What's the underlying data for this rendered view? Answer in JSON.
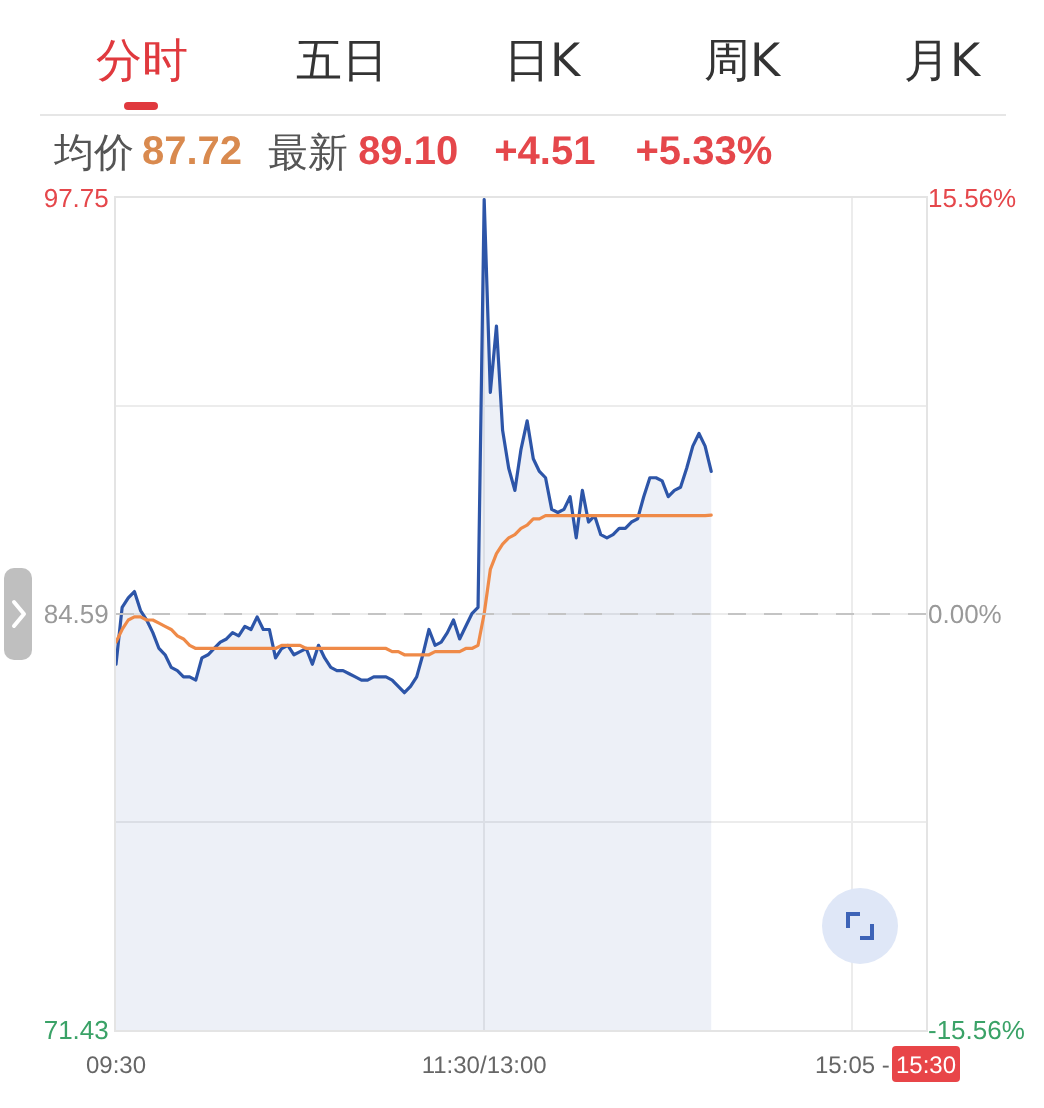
{
  "chart_data": {
    "type": "line",
    "annotations": [
      "分时",
      "五日",
      "日K",
      "周K",
      "月K",
      "均价",
      "87.72",
      "最新",
      "89.10",
      "+4.51",
      "+5.33%"
    ],
    "categories": [
      "09:30",
      null,
      null,
      null,
      null,
      null,
      null,
      null,
      null,
      null,
      null,
      null,
      null,
      null,
      null,
      null,
      null,
      null,
      null,
      null,
      null,
      null,
      null,
      null,
      null,
      null,
      null,
      null,
      null,
      null,
      null,
      null,
      null,
      null,
      null,
      null,
      null,
      null,
      null,
      null,
      null,
      null,
      null,
      null,
      null,
      null,
      null,
      null,
      null,
      null,
      null,
      null,
      null,
      null,
      null,
      null,
      null,
      null,
      null,
      null,
      "11:30/13:00",
      null,
      null,
      null,
      null,
      null,
      null,
      null,
      null,
      null,
      null,
      null,
      null,
      null,
      null,
      null,
      null,
      null,
      null,
      null,
      null,
      null,
      null,
      null,
      null,
      null,
      null,
      null,
      null,
      null,
      null,
      null,
      null,
      null,
      null,
      null,
      null,
      null,
      null,
      null,
      null,
      null,
      null,
      null,
      null,
      null,
      null,
      null,
      null,
      null,
      null,
      null,
      null,
      null,
      null,
      null,
      null,
      null,
      null,
      null,
      "15:05 -",
      null,
      null,
      null,
      null,
      null,
      null,
      null,
      null,
      null,
      null,
      null,
      "15:30"
    ],
    "series": [
      {
        "type": "area",
        "color": "#2d55a8",
        "values": [
          83.0,
          84.8,
          85.1,
          85.3,
          84.7,
          84.4,
          84.0,
          83.5,
          83.3,
          82.9,
          82.8,
          82.6,
          82.6,
          82.5,
          83.2,
          83.3,
          83.5,
          83.7,
          83.8,
          84.0,
          83.9,
          84.2,
          84.1,
          84.5,
          84.1,
          84.1,
          83.2,
          83.5,
          83.6,
          83.3,
          83.4,
          83.5,
          83.0,
          83.6,
          83.2,
          82.9,
          82.8,
          82.8,
          82.7,
          82.6,
          82.5,
          82.5,
          82.6,
          82.6,
          82.6,
          82.5,
          82.3,
          82.1,
          82.3,
          82.6,
          83.3,
          84.1,
          83.6,
          83.7,
          84.0,
          84.4,
          83.8,
          84.2,
          84.6,
          84.8,
          97.7,
          91.6,
          93.7,
          90.4,
          89.2,
          88.5,
          89.8,
          90.7,
          89.5,
          89.1,
          88.9,
          87.9,
          87.8,
          87.9,
          88.3,
          87.0,
          88.5,
          87.5,
          87.7,
          87.1,
          87.0,
          87.1,
          87.3,
          87.3,
          87.5,
          87.6,
          88.3,
          88.9,
          88.9,
          88.8,
          88.3,
          88.5,
          88.6,
          89.2,
          89.9,
          90.3,
          89.9,
          89.1,
          null,
          null,
          null,
          null,
          null,
          null,
          null,
          null,
          null,
          null,
          null,
          null,
          null,
          null,
          null,
          null,
          null,
          null,
          null,
          null,
          null,
          null,
          null,
          null,
          null,
          null,
          null,
          null,
          null,
          null,
          null,
          null,
          null,
          null,
          null
        ]
      },
      {
        "type": "line",
        "color": "#ef8a48",
        "values": [
          83.7,
          84.1,
          84.4,
          84.5,
          84.5,
          84.4,
          84.4,
          84.3,
          84.2,
          84.1,
          83.9,
          83.8,
          83.6,
          83.5,
          83.5,
          83.5,
          83.5,
          83.5,
          83.5,
          83.5,
          83.5,
          83.5,
          83.5,
          83.5,
          83.5,
          83.5,
          83.5,
          83.6,
          83.6,
          83.6,
          83.6,
          83.5,
          83.5,
          83.5,
          83.5,
          83.5,
          83.5,
          83.5,
          83.5,
          83.5,
          83.5,
          83.5,
          83.5,
          83.5,
          83.5,
          83.4,
          83.4,
          83.3,
          83.3,
          83.3,
          83.3,
          83.3,
          83.4,
          83.4,
          83.4,
          83.4,
          83.4,
          83.5,
          83.5,
          83.6,
          84.6,
          86.0,
          86.5,
          86.8,
          87.0,
          87.1,
          87.3,
          87.4,
          87.6,
          87.6,
          87.7,
          87.7,
          87.7,
          87.7,
          87.7,
          87.7,
          87.7,
          87.7,
          87.7,
          87.7,
          87.7,
          87.7,
          87.7,
          87.7,
          87.7,
          87.7,
          87.7,
          87.7,
          87.7,
          87.7,
          87.7,
          87.7,
          87.7,
          87.7,
          87.7,
          87.7,
          87.7,
          87.72,
          null,
          null,
          null,
          null,
          null,
          null,
          null,
          null,
          null,
          null,
          null,
          null,
          null,
          null,
          null,
          null,
          null,
          null,
          null,
          null,
          null,
          null,
          null,
          null,
          null,
          null,
          null,
          null,
          null,
          null,
          null,
          null,
          null,
          null,
          null
        ]
      }
    ],
    "ylim": [
      71.43,
      97.75
    ],
    "yticks": [
      71.43,
      {
        "value": 78.01,
        "label": null
      },
      84.59,
      {
        "value": 91.17,
        "label": null
      },
      97.75
    ],
    "y2lim": [
      -15.56,
      15.56
    ],
    "y2ticks": [
      {
        "value": -15.56,
        "label": "-15.56%"
      },
      {
        "value": 0,
        "label": "0.00%"
      },
      {
        "value": 15.56,
        "label": "15.56%"
      }
    ],
    "ref_lines": [
      {
        "axis": "y",
        "value": 84.59,
        "line_style": "dashed",
        "color": "#c4c4c4"
      }
    ],
    "grid": true
  }
}
